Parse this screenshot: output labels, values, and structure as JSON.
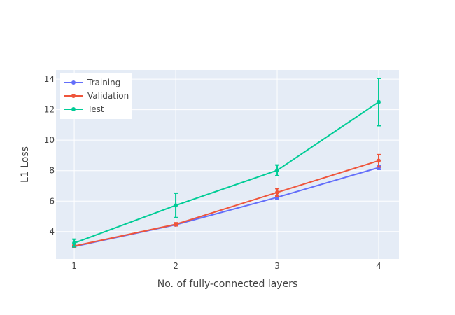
{
  "chart_data": {
    "type": "line",
    "title": "",
    "xlabel": "No. of fully-connected layers",
    "ylabel": "L1 Loss",
    "x": [
      1,
      2,
      3,
      4
    ],
    "xticks": [
      "1",
      "2",
      "3",
      "4"
    ],
    "yticks": [
      "4",
      "6",
      "8",
      "10",
      "12",
      "14"
    ],
    "xlim": [
      0.82,
      4.2
    ],
    "ylim": [
      2.2,
      14.6
    ],
    "grid": true,
    "legend_position": "top-left",
    "series": [
      {
        "name": "Training",
        "color": "#636efa",
        "values": [
          3.02,
          4.45,
          6.25,
          8.2
        ],
        "error": [
          0.05,
          0.05,
          0.1,
          0.12
        ]
      },
      {
        "name": "Validation",
        "color": "#ef553b",
        "values": [
          3.05,
          4.48,
          6.57,
          8.65
        ],
        "error": [
          0.06,
          0.1,
          0.25,
          0.4
        ]
      },
      {
        "name": "Test",
        "color": "#00cc96",
        "values": [
          3.25,
          5.72,
          8.02,
          12.5
        ],
        "error": [
          0.25,
          0.8,
          0.35,
          1.55
        ]
      }
    ]
  }
}
